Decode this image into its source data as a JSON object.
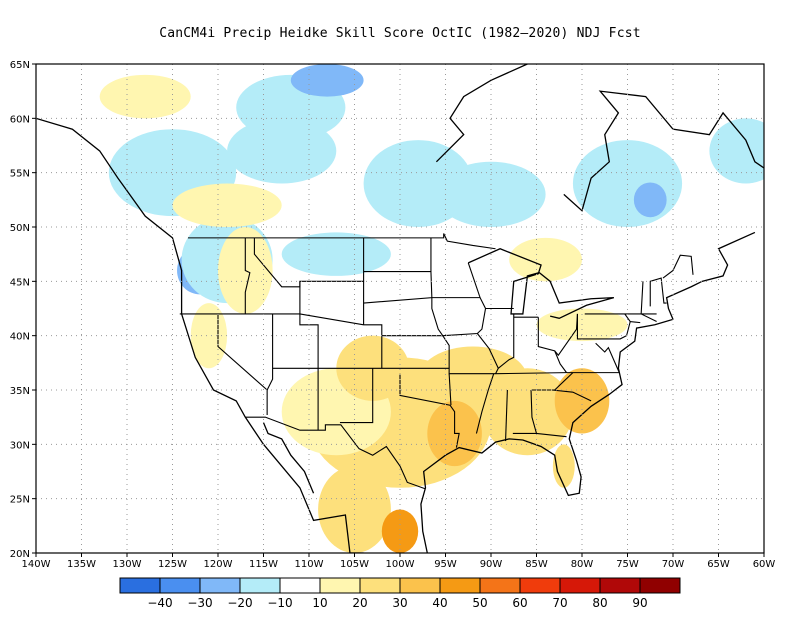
{
  "title": "CanCM4i Precip Heidke Skill Score OctIC (1982–2020) NDJ Fcst",
  "map": {
    "lon_range": [
      -140,
      -60
    ],
    "lat_range": [
      20,
      65
    ],
    "lon_ticks": [
      "140W",
      "135W",
      "130W",
      "125W",
      "120W",
      "115W",
      "110W",
      "105W",
      "100W",
      "95W",
      "90W",
      "85W",
      "80W",
      "75W",
      "70W",
      "65W",
      "60W"
    ],
    "lat_ticks": [
      "20N",
      "25N",
      "30N",
      "35N",
      "40N",
      "45N",
      "50N",
      "55N",
      "60N",
      "65N"
    ],
    "grid": "dotted"
  },
  "colorbar": {
    "colors": [
      "#2a6fe0",
      "#4a8ff0",
      "#80b8f8",
      "#b4ecf8",
      "#ffffff",
      "#fff6b0",
      "#fde07c",
      "#fbc24c",
      "#f59a14",
      "#f47418",
      "#f03c0c",
      "#d61808",
      "#b00808",
      "#900000"
    ],
    "labels": [
      "−40",
      "−30",
      "−20",
      "−10",
      "10",
      "20",
      "30",
      "40",
      "50",
      "60",
      "70",
      "80",
      "90"
    ]
  },
  "chart_data": {
    "type": "heatmap",
    "title": "CanCM4i Precip Heidke Skill Score OctIC (1982–2020) NDJ Fcst",
    "x_range": [
      -140,
      -60
    ],
    "y_range": [
      20,
      65
    ],
    "color_levels": [
      -40,
      -30,
      -20,
      -10,
      10,
      20,
      30,
      40,
      50,
      60,
      70,
      80,
      90
    ],
    "regions": [
      {
        "lon": -122,
        "lat": 46,
        "rx": 2.5,
        "ry": 2.2,
        "value": -30
      },
      {
        "lon": -119,
        "lat": 47,
        "rx": 5,
        "ry": 4,
        "value": -15
      },
      {
        "lon": -107,
        "lat": 47.5,
        "rx": 6,
        "ry": 2,
        "value": -15
      },
      {
        "lon": -125,
        "lat": 55,
        "rx": 7,
        "ry": 4,
        "value": -15
      },
      {
        "lon": -113,
        "lat": 57,
        "rx": 6,
        "ry": 3,
        "value": -15
      },
      {
        "lon": -112,
        "lat": 61,
        "rx": 6,
        "ry": 3,
        "value": -15
      },
      {
        "lon": -98,
        "lat": 54,
        "rx": 6,
        "ry": 4,
        "value": -15
      },
      {
        "lon": -90,
        "lat": 53,
        "rx": 6,
        "ry": 3,
        "value": -15
      },
      {
        "lon": -75,
        "lat": 54,
        "rx": 6,
        "ry": 4,
        "value": -15
      },
      {
        "lon": -72.5,
        "lat": 52.5,
        "rx": 1.8,
        "ry": 1.6,
        "value": -30
      },
      {
        "lon": -62,
        "lat": 57,
        "rx": 4,
        "ry": 3,
        "value": -15
      },
      {
        "lon": -108,
        "lat": 63.5,
        "rx": 4,
        "ry": 1.5,
        "value": -25
      },
      {
        "lon": -117,
        "lat": 46,
        "rx": 3,
        "ry": 4,
        "value": 15
      },
      {
        "lon": -121,
        "lat": 40,
        "rx": 2,
        "ry": 3,
        "value": 15
      },
      {
        "lon": -119,
        "lat": 52,
        "rx": 6,
        "ry": 2,
        "value": 15
      },
      {
        "lon": -100,
        "lat": 32,
        "rx": 10,
        "ry": 6,
        "value": 20
      },
      {
        "lon": -107,
        "lat": 33,
        "rx": 6,
        "ry": 4,
        "value": 15
      },
      {
        "lon": -103,
        "lat": 37,
        "rx": 4,
        "ry": 3,
        "value": 20
      },
      {
        "lon": -92,
        "lat": 36,
        "rx": 6,
        "ry": 3,
        "value": 20
      },
      {
        "lon": -86,
        "lat": 33,
        "rx": 5,
        "ry": 4,
        "value": 25
      },
      {
        "lon": -80,
        "lat": 34,
        "rx": 3,
        "ry": 3,
        "value": 30
      },
      {
        "lon": -94,
        "lat": 31,
        "rx": 3,
        "ry": 3,
        "value": 30
      },
      {
        "lon": -105,
        "lat": 24,
        "rx": 4,
        "ry": 4,
        "value": 20
      },
      {
        "lon": -100,
        "lat": 22,
        "rx": 2,
        "ry": 2,
        "value": 45
      },
      {
        "lon": -82,
        "lat": 28,
        "rx": 1.2,
        "ry": 2,
        "value": 20
      },
      {
        "lon": -80,
        "lat": 41,
        "rx": 5,
        "ry": 1.5,
        "value": 15
      },
      {
        "lon": -84,
        "lat": 47,
        "rx": 4,
        "ry": 2,
        "value": 15
      },
      {
        "lon": -128,
        "lat": 62,
        "rx": 5,
        "ry": 2,
        "value": 15
      }
    ]
  }
}
